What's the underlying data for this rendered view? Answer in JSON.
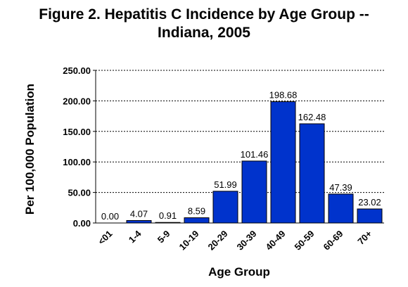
{
  "chart_data": {
    "type": "bar",
    "title_line1": "Figure 2. Hepatitis C Incidence by Age Group --",
    "title_line2": "Indiana, 2005",
    "xlabel": "Age Group",
    "ylabel": "Per 100,000 Population",
    "categories": [
      "<01",
      "1-4",
      "5-9",
      "10-19",
      "20-29",
      "30-39",
      "40-49",
      "50-59",
      "60-69",
      "70+"
    ],
    "values": [
      0.0,
      4.07,
      0.91,
      8.59,
      51.99,
      101.46,
      198.68,
      162.48,
      47.39,
      23.02
    ],
    "value_labels": [
      "0.00",
      "4.07",
      "0.91",
      "8.59",
      "51.99",
      "101.46",
      "198.68",
      "162.48",
      "47.39",
      "23.02"
    ],
    "yticks": [
      "0.00",
      "50.00",
      "100.00",
      "150.00",
      "200.00",
      "250.00"
    ],
    "ylim": [
      0,
      250
    ],
    "grid": "horizontal dotted",
    "bar_color": "#0033cc"
  }
}
